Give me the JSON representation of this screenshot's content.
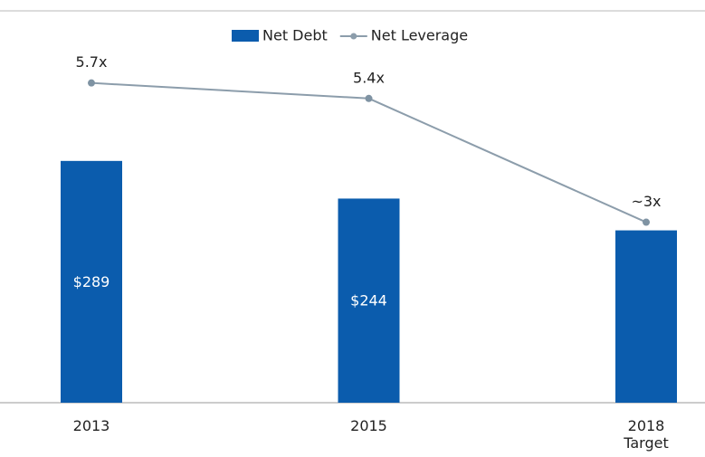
{
  "chart_data": {
    "type": "bar_line",
    "categories": [
      "2013",
      "2015",
      "2018 Target"
    ],
    "series": [
      {
        "name": "Net Debt",
        "type": "bar",
        "color": "#0b5cad",
        "values": [
          289,
          244,
          206
        ],
        "value_labels": [
          "$289",
          "$244",
          null
        ]
      },
      {
        "name": "Net Leverage",
        "type": "line",
        "axis": "y2",
        "color": "#8c9dab",
        "values": [
          5.7,
          5.4,
          3
        ],
        "value_labels": [
          "5.7x",
          "5.4x",
          "~3x"
        ]
      }
    ],
    "ylim": [
      0,
      450
    ],
    "y2lim": [
      -0.5,
      6.8
    ],
    "legend": "top"
  }
}
